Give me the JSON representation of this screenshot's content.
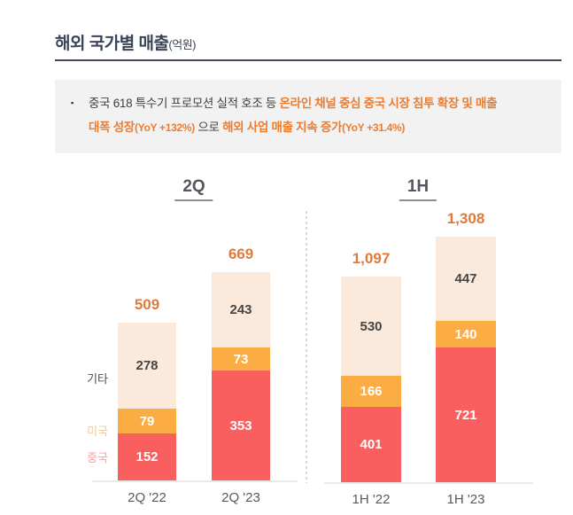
{
  "page": {
    "title": "해외 국가별 매출",
    "title_unit": "(억원)"
  },
  "callout": {
    "bullet": "▪",
    "segments": [
      {
        "style": "dark",
        "text": "중국 618 특수기 프로모션 실적 호조 등 "
      },
      {
        "style": "orange-bold",
        "text": "온라인 채널 중심 중국 시장 침투 확장 및 매출"
      },
      {
        "style": "break",
        "text": ""
      },
      {
        "style": "orange-bold",
        "text": "대폭 성장"
      },
      {
        "style": "orange-paren",
        "text": "(YoY +132%)"
      },
      {
        "style": "dark",
        "text": " 으로 "
      },
      {
        "style": "orange-bold",
        "text": "해외 사업 매출 지속 증가"
      },
      {
        "style": "orange-paren",
        "text": "(YoY +31.4%)"
      }
    ]
  },
  "colors": {
    "title_navy": "#3A4458",
    "rule": "#414C5E",
    "callout_bg": "#F2F2F2",
    "callout_orange": "#EC7C30",
    "total_orange": "#DF7A3B",
    "bar_china_red": "#FA5F5F",
    "bar_usa_orange": "#FBAD43",
    "bar_other_cream": "#FBE9DB",
    "axis_gray": "#E9E9E9",
    "divider_gray": "#D9D9D9"
  },
  "chart_data": [
    {
      "type": "bar",
      "subtype": "stacked",
      "title": "2Q",
      "categories": [
        "2Q '22",
        "2Q '23"
      ],
      "series": [
        {
          "name": "중국",
          "color": "#FA5F5F",
          "label_color": "#FFFFFF",
          "legend_color": "#FB9E9E",
          "values": [
            152,
            353
          ]
        },
        {
          "name": "미국",
          "color": "#FBAD43",
          "label_color": "#FFFFFF",
          "legend_color": "#FBC78C",
          "values": [
            79,
            73
          ]
        },
        {
          "name": "기타",
          "color": "#FBE9DB",
          "label_color": "#454545",
          "legend_color": "#4D4D4D",
          "values": [
            278,
            243
          ]
        }
      ],
      "totals": [
        "509",
        "669"
      ],
      "legend_position": "left-of-first-bar",
      "grid": false
    },
    {
      "type": "bar",
      "subtype": "stacked",
      "title": "1H",
      "categories": [
        "1H '22",
        "1H '23"
      ],
      "series": [
        {
          "name": "중국",
          "color": "#FA5F5F",
          "label_color": "#FFFFFF",
          "legend_color": "#FB9E9E",
          "values": [
            401,
            721
          ]
        },
        {
          "name": "미국",
          "color": "#FBAD43",
          "label_color": "#FFFFFF",
          "legend_color": "#FBC78C",
          "values": [
            166,
            140
          ]
        },
        {
          "name": "기타",
          "color": "#FBE9DB",
          "label_color": "#454545",
          "legend_color": "#4D4D4D",
          "values": [
            530,
            447
          ]
        }
      ],
      "totals": [
        "1,097",
        "1,308"
      ],
      "legend_position": "none",
      "grid": false
    }
  ]
}
